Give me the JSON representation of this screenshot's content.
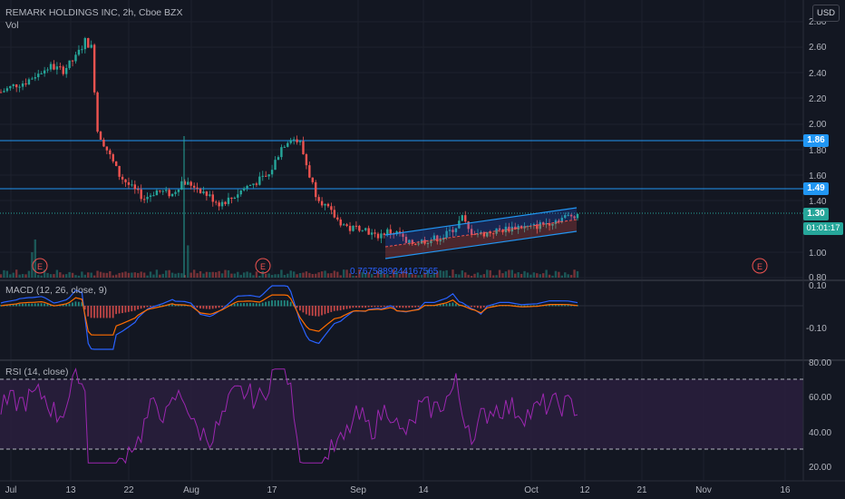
{
  "header": {
    "symbol_title": "REMARK HOLDINGS INC, 2h, Cboe BZX",
    "volume_label": "Vol",
    "currency_button": "USD"
  },
  "indicators": {
    "macd_label": "MACD (12, 26, close, 9)",
    "rsi_label": "RSI (14, close)"
  },
  "price_axis": {
    "ticks": [
      "2.80",
      "2.60",
      "2.40",
      "2.20",
      "2.00",
      "1.80",
      "1.60",
      "1.40",
      "1.00",
      "0.80"
    ],
    "tag_1_86": "1.86",
    "tag_1_49": "1.49",
    "tag_1_30": "1.30",
    "countdown": "01:01:17"
  },
  "macd_axis": {
    "ticks": [
      "0.10",
      "-0.10"
    ]
  },
  "rsi_axis": {
    "ticks": [
      "80.00",
      "60.00",
      "40.00",
      "20.00"
    ]
  },
  "time_axis": {
    "ticks": [
      "Jul",
      "13",
      "22",
      "Aug",
      "17",
      "Sep",
      "14",
      "Oct",
      "12",
      "21",
      "Nov",
      "16"
    ]
  },
  "drawings": {
    "channel_value": "0.7675889244167565",
    "earnings_marker": "E"
  },
  "colors": {
    "background": "#131722",
    "up_candle": "#26a69a",
    "down_candle": "#ef5350",
    "hline": "#2196f3",
    "macd_line": "#2962ff",
    "signal_line": "#ff6d00",
    "rsi_line": "#7e57c2",
    "rsi_band": "#2a1f3d"
  },
  "chart_data": {
    "type": "candlestick",
    "price_levels": [
      1.86,
      1.49,
      1.3
    ],
    "price_ylim": [
      0.8,
      2.8
    ],
    "macd_ylim": [
      -0.15,
      0.12
    ],
    "rsi_ylim": [
      15,
      80
    ],
    "rsi_bands": [
      70,
      30
    ],
    "price_path": [
      [
        0,
        2.25
      ],
      [
        4,
        2.3
      ],
      [
        8,
        2.33
      ],
      [
        12,
        2.4
      ],
      [
        16,
        2.45
      ],
      [
        20,
        2.42
      ],
      [
        24,
        2.52
      ],
      [
        27,
        2.65
      ],
      [
        29,
        2.6
      ],
      [
        31,
        1.95
      ],
      [
        34,
        1.8
      ],
      [
        38,
        1.6
      ],
      [
        42,
        1.5
      ],
      [
        46,
        1.42
      ],
      [
        50,
        1.48
      ],
      [
        55,
        1.45
      ],
      [
        58,
        1.55
      ],
      [
        62,
        1.52
      ],
      [
        66,
        1.45
      ],
      [
        70,
        1.38
      ],
      [
        74,
        1.42
      ],
      [
        78,
        1.5
      ],
      [
        82,
        1.55
      ],
      [
        86,
        1.6
      ],
      [
        90,
        1.82
      ],
      [
        93,
        1.9
      ],
      [
        96,
        1.85
      ],
      [
        99,
        1.6
      ],
      [
        101,
        1.46
      ],
      [
        104,
        1.36
      ],
      [
        108,
        1.25
      ],
      [
        112,
        1.18
      ],
      [
        116,
        1.2
      ],
      [
        120,
        1.12
      ],
      [
        124,
        1.16
      ],
      [
        128,
        1.14
      ],
      [
        130,
        1.06
      ],
      [
        134,
        1.08
      ],
      [
        138,
        1.1
      ],
      [
        142,
        1.12
      ],
      [
        146,
        1.2
      ],
      [
        148,
        1.27
      ],
      [
        150,
        1.17
      ],
      [
        154,
        1.14
      ],
      [
        158,
        1.16
      ],
      [
        162,
        1.18
      ],
      [
        166,
        1.2
      ],
      [
        170,
        1.19
      ],
      [
        174,
        1.22
      ],
      [
        178,
        1.25
      ],
      [
        182,
        1.28
      ],
      [
        185,
        1.3
      ]
    ]
  }
}
